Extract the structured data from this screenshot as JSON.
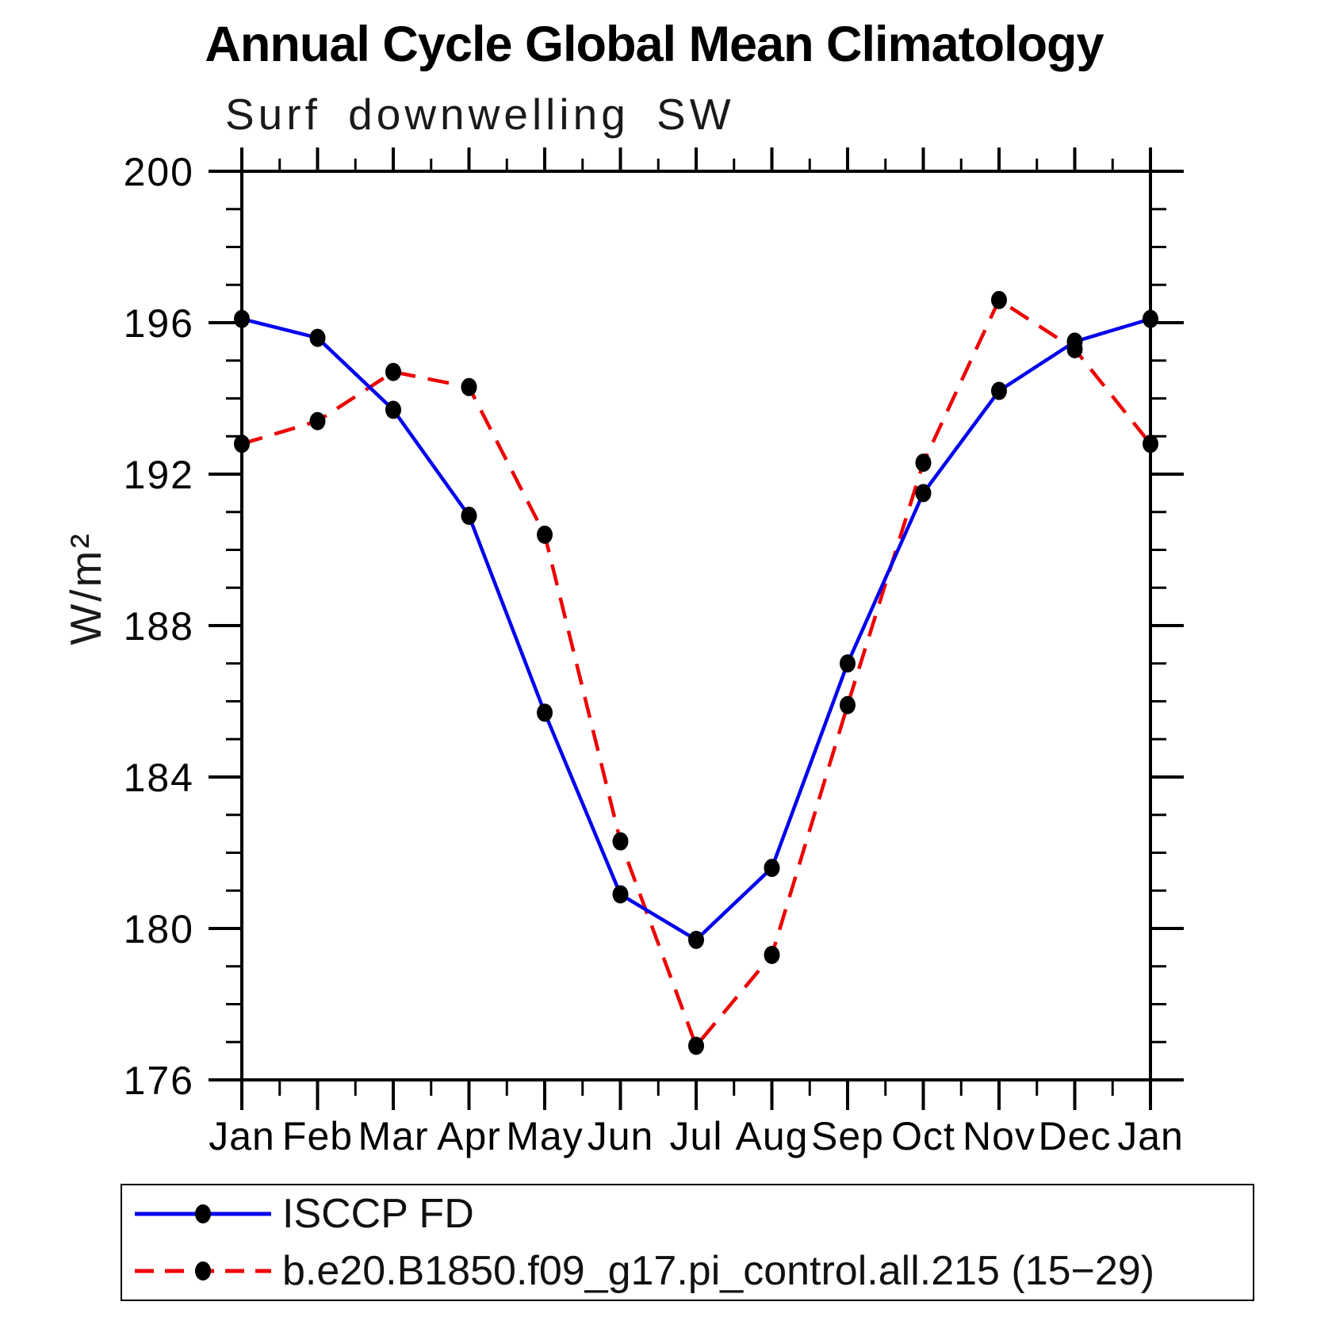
{
  "title": "Annual Cycle Global Mean Climatology",
  "subtitle": "Surf downwelling SW",
  "chart_data": {
    "type": "line",
    "title": "Annual Cycle Global Mean Climatology",
    "subtitle": "Surf downwelling SW",
    "ylabel": "W/m²",
    "xlabel": "",
    "categories": [
      "Jan",
      "Feb",
      "Mar",
      "Apr",
      "May",
      "Jun",
      "Jul",
      "Aug",
      "Sep",
      "Oct",
      "Nov",
      "Dec",
      "Jan"
    ],
    "series": [
      {
        "name": "ISCCP FD",
        "color": "#0000ee",
        "style": "solid",
        "marker": "filled-circle",
        "marker_color": "#000000",
        "values": [
          196.1,
          195.6,
          193.7,
          190.9,
          185.7,
          180.9,
          179.7,
          181.6,
          187.0,
          191.5,
          194.2,
          195.5,
          196.1
        ]
      },
      {
        "name": "b.e20.B1850.f09_g17.pi_control.all.215 (15−29)",
        "color": "#ee0000",
        "style": "dashed",
        "marker": "filled-circle",
        "marker_color": "#000000",
        "values": [
          192.8,
          193.4,
          194.7,
          194.3,
          190.4,
          182.3,
          176.9,
          179.3,
          185.9,
          192.3,
          196.6,
          195.3,
          192.8
        ]
      }
    ],
    "ylim": [
      176,
      200
    ],
    "ytick_major_step": 4,
    "ytick_minor_step": 1,
    "ytick_labels": [
      "176",
      "180",
      "184",
      "188",
      "192",
      "196",
      "200"
    ],
    "grid": "off",
    "legend_position": "bottom-box"
  }
}
